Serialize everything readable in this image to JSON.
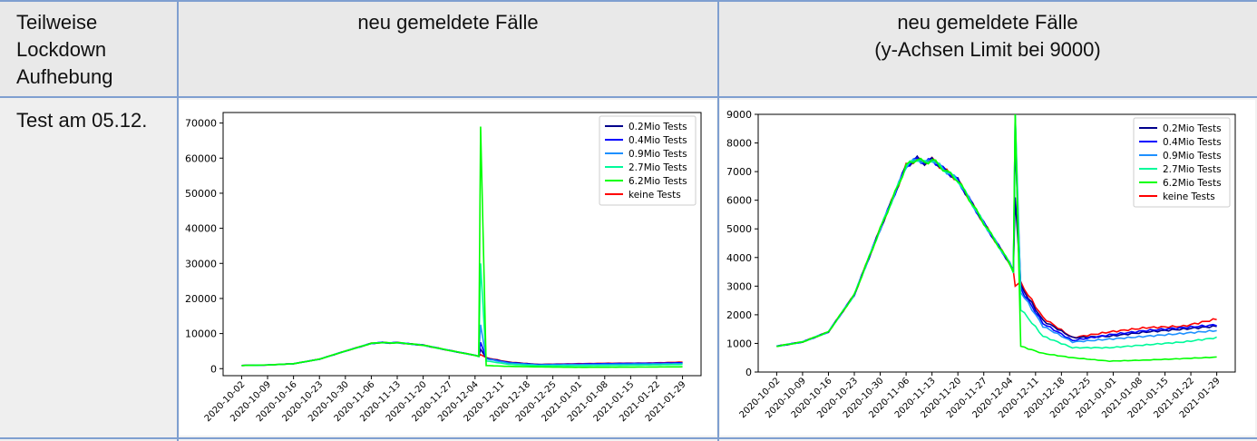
{
  "table": {
    "header_col1": [
      "Teilweise",
      "Lockdown",
      "Aufhebung"
    ],
    "header_col2": [
      "neu gemeldete Fälle"
    ],
    "header_col3": [
      "neu gemeldete Fälle",
      "(y-Achsen Limit bei 9000)"
    ],
    "row1_label": "Test am 05.12."
  },
  "chart_data": [
    {
      "type": "line",
      "title": "",
      "xlabel": "",
      "ylabel": "",
      "x_ticks": [
        "2020-10-02",
        "2020-10-09",
        "2020-10-16",
        "2020-10-23",
        "2020-10-30",
        "2020-11-06",
        "2020-11-13",
        "2020-11-20",
        "2020-11-27",
        "2020-12-04",
        "2020-12-11",
        "2020-12-18",
        "2020-12-25",
        "2021-01-01",
        "2021-01-08",
        "2021-01-15",
        "2021-01-22",
        "2021-01-29"
      ],
      "ylim": [
        -2000,
        73000
      ],
      "y_ticks": [
        0,
        10000,
        20000,
        30000,
        40000,
        50000,
        60000,
        70000
      ],
      "legend_position": "top-right",
      "x_range_days": [
        0,
        119
      ],
      "series": [
        {
          "name": "0.2Mio Tests",
          "color": "#00008b"
        },
        {
          "name": "0.4Mio Tests",
          "color": "#0000ff"
        },
        {
          "name": "0.9Mio Tests",
          "color": "#1e90ff"
        },
        {
          "name": "2.7Mio Tests",
          "color": "#00fa9a"
        },
        {
          "name": "6.2Mio Tests",
          "color": "#00ff00"
        },
        {
          "name": "keine Tests",
          "color": "#ff0000"
        }
      ],
      "spike_peaks": [
        5500,
        7500,
        12500,
        30000,
        69000,
        4000
      ]
    },
    {
      "type": "line",
      "title": "",
      "xlabel": "",
      "ylabel": "",
      "x_ticks": [
        "2020-10-02",
        "2020-10-09",
        "2020-10-16",
        "2020-10-23",
        "2020-10-30",
        "2020-11-06",
        "2020-11-13",
        "2020-11-20",
        "2020-11-27",
        "2020-12-04",
        "2020-12-11",
        "2020-12-18",
        "2020-12-25",
        "2021-01-01",
        "2021-01-08",
        "2021-01-15",
        "2021-01-22",
        "2021-01-29"
      ],
      "ylim": [
        0,
        9000
      ],
      "y_ticks": [
        0,
        1000,
        2000,
        3000,
        4000,
        5000,
        6000,
        7000,
        8000,
        9000
      ],
      "legend_position": "top-right",
      "x_range_days": [
        0,
        119
      ],
      "series": [
        {
          "name": "0.2Mio Tests",
          "color": "#00008b"
        },
        {
          "name": "0.4Mio Tests",
          "color": "#0000ff"
        },
        {
          "name": "0.9Mio Tests",
          "color": "#1e90ff"
        },
        {
          "name": "2.7Mio Tests",
          "color": "#00fa9a"
        },
        {
          "name": "6.2Mio Tests",
          "color": "#00ff00"
        },
        {
          "name": "keine Tests",
          "color": "#ff0000"
        }
      ],
      "spike_peaks": [
        6100,
        8000,
        9000,
        9000,
        9000,
        3000
      ]
    }
  ],
  "curve": {
    "base_days": [
      0,
      7,
      14,
      21,
      28,
      35,
      38,
      40,
      42,
      45,
      49,
      56,
      63,
      64,
      65
    ],
    "base_vals": [
      900,
      1050,
      1400,
      2700,
      5000,
      7200,
      7450,
      7300,
      7420,
      7100,
      6700,
      5200,
      3800,
      3500,
      3200
    ],
    "after_day": 65,
    "end_day": 119,
    "tails": {
      "0.2Mio Tests": [
        [
          66,
          3000
        ],
        [
          72,
          1800
        ],
        [
          80,
          1200
        ],
        [
          90,
          1250
        ],
        [
          100,
          1400
        ],
        [
          110,
          1500
        ],
        [
          119,
          1600
        ]
      ],
      "0.4Mio Tests": [
        [
          66,
          2900
        ],
        [
          72,
          1700
        ],
        [
          80,
          1100
        ],
        [
          90,
          1300
        ],
        [
          100,
          1450
        ],
        [
          110,
          1550
        ],
        [
          119,
          1650
        ]
      ],
      "0.9Mio Tests": [
        [
          66,
          2800
        ],
        [
          72,
          1600
        ],
        [
          80,
          1050
        ],
        [
          90,
          1150
        ],
        [
          100,
          1250
        ],
        [
          110,
          1350
        ],
        [
          119,
          1450
        ]
      ],
      "2.7Mio Tests": [
        [
          66,
          2200
        ],
        [
          72,
          1250
        ],
        [
          80,
          850
        ],
        [
          90,
          850
        ],
        [
          100,
          950
        ],
        [
          110,
          1050
        ],
        [
          119,
          1200
        ]
      ],
      "6.2Mio Tests": [
        [
          66,
          900
        ],
        [
          72,
          650
        ],
        [
          80,
          500
        ],
        [
          90,
          380
        ],
        [
          100,
          420
        ],
        [
          110,
          470
        ],
        [
          119,
          520
        ]
      ],
      "keine Tests": [
        [
          66,
          3100
        ],
        [
          72,
          1900
        ],
        [
          80,
          1200
        ],
        [
          90,
          1400
        ],
        [
          100,
          1550
        ],
        [
          110,
          1600
        ],
        [
          119,
          1850
        ]
      ]
    }
  }
}
